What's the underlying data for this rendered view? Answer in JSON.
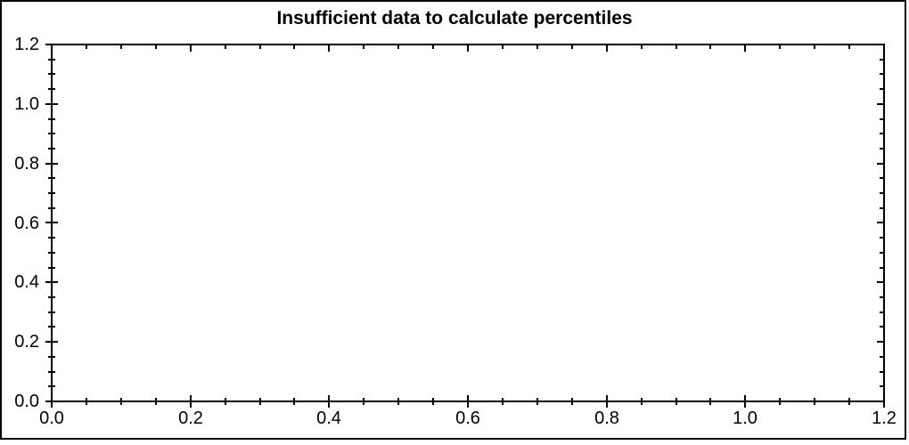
{
  "colors": {
    "background": "#ffffff",
    "axis": "#000000",
    "text": "#000000"
  },
  "chart_data": {
    "type": "scatter",
    "title": "Insufficient data to calculate percentiles",
    "series": [],
    "points": [],
    "xlabel": "",
    "ylabel": "",
    "xlim": [
      0.0,
      1.2
    ],
    "ylim": [
      0.0,
      1.2
    ],
    "x_major_ticks": [
      0.0,
      0.2,
      0.4,
      0.6,
      0.8,
      1.0,
      1.2
    ],
    "y_major_ticks": [
      0.0,
      0.2,
      0.4,
      0.6,
      0.8,
      1.0,
      1.2
    ],
    "x_tick_labels": [
      "0.0",
      "0.2",
      "0.4",
      "0.6",
      "0.8",
      "1.0",
      "1.2"
    ],
    "y_tick_labels": [
      "0.0",
      "0.2",
      "0.4",
      "0.6",
      "0.8",
      "1.0",
      "1.2"
    ],
    "minor_tick_interval": 0.05,
    "grid": false,
    "legend": null,
    "frame": "box",
    "tick_style": {
      "bottom_left": "cross",
      "top_right": "inward"
    }
  }
}
